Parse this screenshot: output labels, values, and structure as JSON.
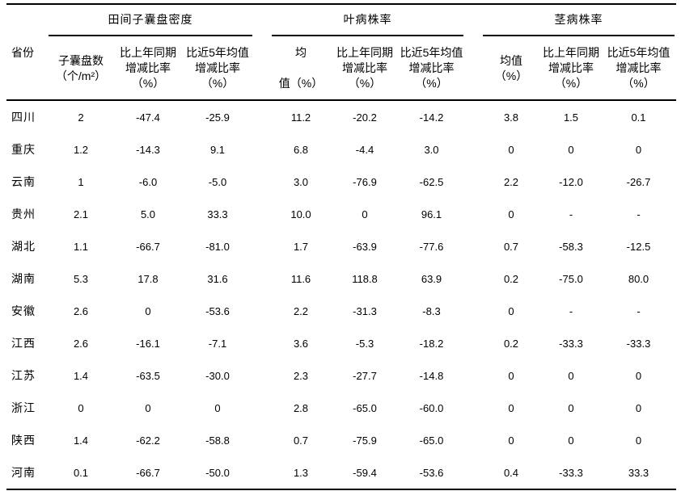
{
  "table": {
    "province_header": "省份",
    "groups": [
      {
        "title": "田间子囊盘密度",
        "columns": [
          [
            "子囊盘数",
            "（个/m²）"
          ],
          [
            "比上年同期",
            "增减比率",
            "（%）"
          ],
          [
            "比近5年均值",
            "增减比率",
            "（%）"
          ]
        ]
      },
      {
        "title": "叶病株率",
        "columns": [
          [
            "均",
            "",
            "值（%）"
          ],
          [
            "比上年同期",
            "增减比率",
            "（%）"
          ],
          [
            "比近5年均值",
            "增减比率",
            "（%）"
          ]
        ]
      },
      {
        "title": "茎病株率",
        "columns": [
          [
            "均值",
            "（%）"
          ],
          [
            "比上年同期",
            "增减比率",
            "（%）"
          ],
          [
            "比近5年均值",
            "增减比率",
            "（%）"
          ]
        ]
      }
    ],
    "rows": [
      {
        "province": "四川",
        "values": [
          "2",
          "-47.4",
          "-25.9",
          "11.2",
          "-20.2",
          "-14.2",
          "3.8",
          "1.5",
          "0.1"
        ]
      },
      {
        "province": "重庆",
        "values": [
          "1.2",
          "-14.3",
          "9.1",
          "6.8",
          "-4.4",
          "3.0",
          "0",
          "0",
          "0"
        ]
      },
      {
        "province": "云南",
        "values": [
          "1",
          "-6.0",
          "-5.0",
          "3.0",
          "-76.9",
          "-62.5",
          "2.2",
          "-12.0",
          "-26.7"
        ]
      },
      {
        "province": "贵州",
        "values": [
          "2.1",
          "5.0",
          "33.3",
          "10.0",
          "0",
          "96.1",
          "0",
          "-",
          "-"
        ]
      },
      {
        "province": "湖北",
        "values": [
          "1.1",
          "-66.7",
          "-81.0",
          "1.7",
          "-63.9",
          "-77.6",
          "0.7",
          "-58.3",
          "-12.5"
        ]
      },
      {
        "province": "湖南",
        "values": [
          "5.3",
          "17.8",
          "31.6",
          "11.6",
          "118.8",
          "63.9",
          "0.2",
          "-75.0",
          "80.0"
        ]
      },
      {
        "province": "安徽",
        "values": [
          "2.6",
          "0",
          "-53.6",
          "2.2",
          "-31.3",
          "-8.3",
          "0",
          "-",
          "-"
        ]
      },
      {
        "province": "江西",
        "values": [
          "2.6",
          "-16.1",
          "-7.1",
          "3.6",
          "-5.3",
          "-18.2",
          "0.2",
          "-33.3",
          "-33.3"
        ]
      },
      {
        "province": "江苏",
        "values": [
          "1.4",
          "-63.5",
          "-30.0",
          "2.3",
          "-27.7",
          "-14.8",
          "0",
          "0",
          "0"
        ]
      },
      {
        "province": "浙江",
        "values": [
          "0",
          "0",
          "0",
          "2.8",
          "-65.0",
          "-60.0",
          "0",
          "0",
          "0"
        ]
      },
      {
        "province": "陕西",
        "values": [
          "1.4",
          "-62.2",
          "-58.8",
          "0.7",
          "-75.9",
          "-65.0",
          "0",
          "0",
          "0"
        ]
      },
      {
        "province": "河南",
        "values": [
          "0.1",
          "-66.7",
          "-50.0",
          "1.3",
          "-59.4",
          "-53.6",
          "0.4",
          "-33.3",
          "33.3"
        ]
      }
    ]
  },
  "colors": {
    "text": "#000000",
    "background": "#ffffff",
    "rule": "#000000"
  }
}
